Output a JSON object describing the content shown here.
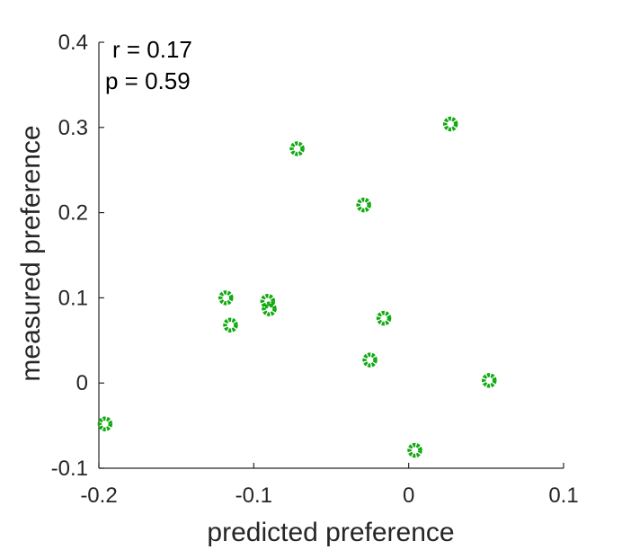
{
  "chart_data": {
    "type": "scatter",
    "xlabel": "predicted preference",
    "ylabel": "measured preference",
    "xlim": [
      -0.2,
      0.1
    ],
    "ylim": [
      -0.1,
      0.4
    ],
    "x_ticks": [
      "-0.2",
      "-0.1",
      "0",
      "0.1"
    ],
    "y_ticks": [
      "-0.1",
      "0",
      "0.1",
      "0.2",
      "0.3",
      "0.4"
    ],
    "annotations": [
      "r = 0.17",
      "p = 0.59"
    ],
    "marker_color": "#11aa11",
    "grid": false,
    "points": [
      {
        "x": -0.196,
        "y": -0.048
      },
      {
        "x": -0.118,
        "y": 0.1
      },
      {
        "x": -0.115,
        "y": 0.068
      },
      {
        "x": -0.091,
        "y": 0.096
      },
      {
        "x": -0.09,
        "y": 0.087
      },
      {
        "x": -0.072,
        "y": 0.275
      },
      {
        "x": -0.029,
        "y": 0.209
      },
      {
        "x": -0.025,
        "y": 0.027
      },
      {
        "x": -0.016,
        "y": 0.076
      },
      {
        "x": 0.004,
        "y": -0.079
      },
      {
        "x": 0.027,
        "y": 0.304
      },
      {
        "x": 0.052,
        "y": 0.003
      }
    ]
  }
}
